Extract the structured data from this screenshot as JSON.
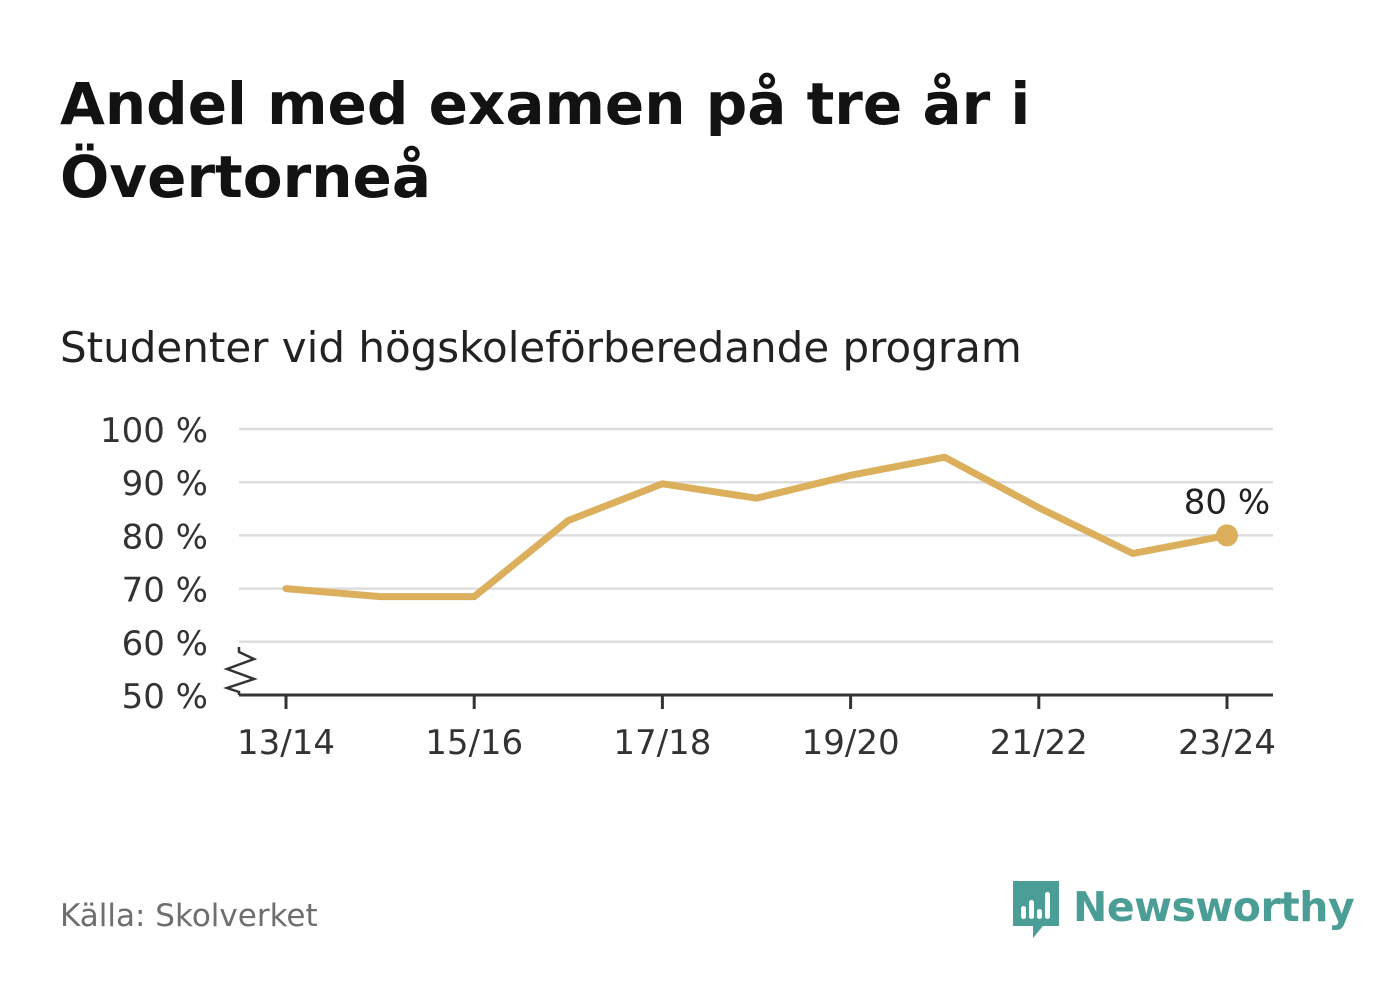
{
  "title": "Andel med examen på tre år i Övertorneå",
  "subtitle": "Studenter vid högskoleförberedande program",
  "source": "Källa: Skolverket",
  "brand": "Newsworthy",
  "colors": {
    "line": "#DBAF5C",
    "brand": "#4B9E95",
    "grid": "#DDDDDD",
    "axis": "#333333"
  },
  "chart_data": {
    "type": "line",
    "title": "Andel med examen på tre år i Övertorneå",
    "subtitle": "Studenter vid högskoleförberedande program",
    "x": [
      "13/14",
      "14/15",
      "15/16",
      "16/17",
      "17/18",
      "18/19",
      "19/20",
      "20/21",
      "21/22",
      "22/23",
      "23/24"
    ],
    "xticks": [
      "13/14",
      "15/16",
      "17/18",
      "19/20",
      "21/22",
      "23/24"
    ],
    "series": [
      {
        "values": [
          70,
          68.5,
          68.5,
          82.8,
          89.7,
          87,
          91.3,
          94.7,
          85.2,
          76.6,
          80
        ]
      }
    ],
    "yticks": [
      "50 %",
      "60 %",
      "70 %",
      "80 %",
      "90 %",
      "100 %"
    ],
    "ytick_values": [
      50,
      60,
      70,
      80,
      90,
      100
    ],
    "ylim": [
      50,
      100
    ],
    "axis_break": true,
    "last_label": "80 %",
    "grid": true
  }
}
